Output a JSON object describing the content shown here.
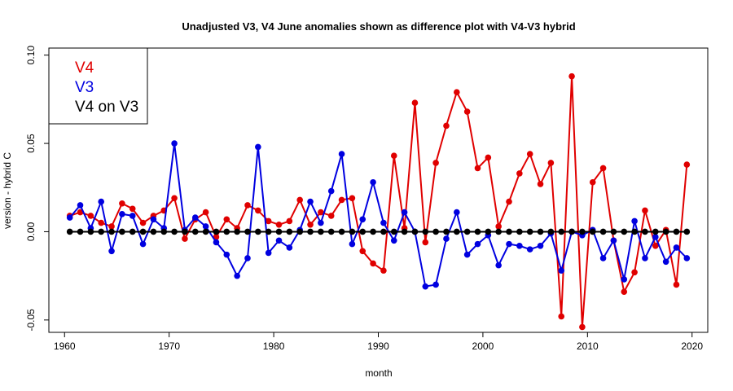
{
  "chart_data": {
    "type": "line",
    "title": "Unadjusted V3, V4 June anomalies shown as difference plot with V4-V3 hybrid",
    "xlabel": "month",
    "ylabel": "version - hybrid C",
    "xlim": [
      1958.5,
      2021.5
    ],
    "ylim": [
      -0.057,
      0.104
    ],
    "xticks": [
      1960,
      1970,
      1980,
      1990,
      2000,
      2010,
      2020
    ],
    "xtick_labels": [
      "1960",
      "1970",
      "1980",
      "1990",
      "2000",
      "2010",
      "2020"
    ],
    "yticks": [
      -0.05,
      0,
      0.05,
      0.1
    ],
    "ytick_labels": [
      "-0.05",
      "0.00",
      "0.05",
      "0.10"
    ],
    "legend_position": "top-left",
    "x": [
      1960.5,
      1961.5,
      1962.5,
      1963.5,
      1964.5,
      1965.5,
      1966.5,
      1967.5,
      1968.5,
      1969.5,
      1970.5,
      1971.5,
      1972.5,
      1973.5,
      1974.5,
      1975.5,
      1976.5,
      1977.5,
      1978.5,
      1979.5,
      1980.5,
      1981.5,
      1982.5,
      1983.5,
      1984.5,
      1985.5,
      1986.5,
      1987.5,
      1988.5,
      1989.5,
      1990.5,
      1991.5,
      1992.5,
      1993.5,
      1994.5,
      1995.5,
      1996.5,
      1997.5,
      1998.5,
      1999.5,
      2000.5,
      2001.5,
      2002.5,
      2003.5,
      2004.5,
      2005.5,
      2006.5,
      2007.5,
      2008.5,
      2009.5,
      2010.5,
      2011.5,
      2012.5,
      2013.5,
      2014.5,
      2015.5,
      2016.5,
      2017.5,
      2018.5,
      2019.5
    ],
    "series": [
      {
        "name": "V4",
        "color": "#e00000",
        "values": [
          0.009,
          0.011,
          0.009,
          0.005,
          0.003,
          0.016,
          0.013,
          0.005,
          0.009,
          0.012,
          0.019,
          -0.004,
          0.007,
          0.011,
          -0.003,
          0.007,
          0.002,
          0.015,
          0.012,
          0.006,
          0.004,
          0.006,
          0.018,
          0.004,
          0.011,
          0.009,
          0.018,
          0.019,
          -0.011,
          -0.018,
          -0.022,
          0.043,
          0.002,
          0.073,
          -0.006,
          0.039,
          0.06,
          0.079,
          0.068,
          0.036,
          0.042,
          0.003,
          0.017,
          0.033,
          0.044,
          0.027,
          0.039,
          -0.048,
          0.088,
          -0.054,
          0.028,
          0.036,
          -0.005,
          -0.034,
          -0.023,
          0.012,
          -0.008,
          0.001,
          -0.03,
          0.038
        ]
      },
      {
        "name": "V3",
        "color": "#0000e0",
        "values": [
          0.008,
          0.015,
          0.002,
          0.017,
          -0.011,
          0.01,
          0.009,
          -0.007,
          0.007,
          0.002,
          0.05,
          0.001,
          0.008,
          0.003,
          -0.006,
          -0.013,
          -0.025,
          -0.015,
          0.048,
          -0.012,
          -0.005,
          -0.009,
          0.001,
          0.017,
          0.005,
          0.023,
          0.044,
          -0.007,
          0.007,
          0.028,
          0.005,
          -0.005,
          0.011,
          0.0,
          -0.031,
          -0.03,
          -0.004,
          0.011,
          -0.013,
          -0.007,
          -0.002,
          -0.019,
          -0.007,
          -0.008,
          -0.01,
          -0.008,
          -0.001,
          -0.022,
          0.0,
          -0.002,
          0.001,
          -0.015,
          -0.005,
          -0.027,
          0.006,
          -0.015,
          -0.003,
          -0.017,
          -0.009,
          -0.015
        ]
      },
      {
        "name": "V4 on V3",
        "color": "#000000",
        "values": [
          0,
          0,
          0,
          0,
          0,
          0,
          0,
          0,
          0,
          0,
          0,
          0,
          0,
          0,
          0,
          0,
          0,
          0,
          0,
          0,
          0,
          0,
          0,
          0,
          0,
          0,
          0,
          0,
          0,
          0,
          0,
          0,
          0,
          0,
          0,
          0,
          0,
          0,
          0,
          0,
          0,
          0,
          0,
          0,
          0,
          0,
          0,
          0,
          0,
          0,
          0,
          0,
          0,
          0,
          0,
          0,
          0,
          0,
          0,
          0
        ]
      }
    ]
  }
}
